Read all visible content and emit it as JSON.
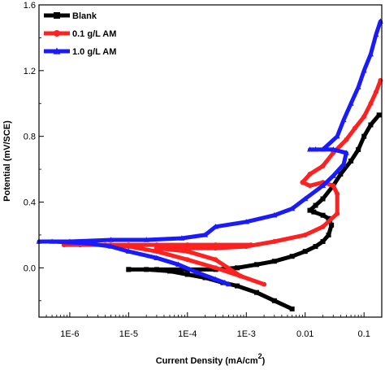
{
  "chart_data": {
    "type": "line",
    "title": "",
    "xlabel": "Current Density (mA/cm",
    "xlabel_superscript": "2",
    "xlabel_suffix": ")",
    "ylabel": "Potential  (mV/SCE)",
    "x_scale": "log",
    "xlim": [
      3e-07,
      0.2
    ],
    "ylim": [
      -0.3,
      1.6
    ],
    "x_ticks": [
      {
        "value": 1e-06,
        "label": "1E-6"
      },
      {
        "value": 1e-05,
        "label": "1E-5"
      },
      {
        "value": 0.0001,
        "label": "1E-4"
      },
      {
        "value": 0.001,
        "label": "1E-3"
      },
      {
        "value": 0.01,
        "label": "0.01"
      },
      {
        "value": 0.1,
        "label": "0.1"
      }
    ],
    "y_ticks": [
      {
        "value": 0.0,
        "label": "0.0"
      },
      {
        "value": 0.4,
        "label": "0.4"
      },
      {
        "value": 0.8,
        "label": "0.8"
      },
      {
        "value": 1.2,
        "label": "1.2"
      },
      {
        "value": 1.6,
        "label": "1.6"
      }
    ],
    "grid": false,
    "legend_position": "top-left",
    "series": [
      {
        "name": "Blank",
        "color": "#000000",
        "marker": "square",
        "points": [
          [
            0.006,
            -0.25
          ],
          [
            0.003,
            -0.2
          ],
          [
            0.0015,
            -0.15
          ],
          [
            0.0007,
            -0.11
          ],
          [
            0.0004,
            -0.09
          ],
          [
            0.0002,
            -0.06
          ],
          [
            0.0001,
            -0.04
          ],
          [
            5e-05,
            -0.02
          ],
          [
            2e-05,
            -0.01
          ],
          [
            1e-05,
            -0.01
          ],
          [
            1e-05,
            -0.01
          ],
          [
            3e-05,
            -0.01
          ],
          [
            0.0001,
            -0.01
          ],
          [
            0.0003,
            -0.01
          ],
          [
            0.0007,
            0.0
          ],
          [
            0.0015,
            0.02
          ],
          [
            0.003,
            0.04
          ],
          [
            0.006,
            0.07
          ],
          [
            0.01,
            0.1
          ],
          [
            0.015,
            0.13
          ],
          [
            0.02,
            0.16
          ],
          [
            0.025,
            0.2
          ],
          [
            0.028,
            0.26
          ],
          [
            0.025,
            0.3
          ],
          [
            0.02,
            0.32
          ],
          [
            0.014,
            0.34
          ],
          [
            0.012,
            0.35
          ],
          [
            0.015,
            0.38
          ],
          [
            0.02,
            0.42
          ],
          [
            0.03,
            0.5
          ],
          [
            0.04,
            0.57
          ],
          [
            0.06,
            0.65
          ],
          [
            0.08,
            0.72
          ],
          [
            0.1,
            0.8
          ],
          [
            0.13,
            0.87
          ],
          [
            0.18,
            0.93
          ]
        ]
      },
      {
        "name": "0.1 g/L AM",
        "color": "#ff2020",
        "marker": "circle",
        "points": [
          [
            0.0012,
            0.14
          ],
          [
            0.0003,
            0.14
          ],
          [
            0.0001,
            0.14
          ],
          [
            3e-05,
            0.14
          ],
          [
            1e-05,
            0.14
          ],
          [
            4e-06,
            0.14
          ],
          [
            1.5e-06,
            0.14
          ],
          [
            8e-07,
            0.14
          ],
          [
            1.5e-06,
            0.14
          ],
          [
            5e-06,
            0.14
          ],
          [
            1e-05,
            0.13
          ],
          [
            3e-05,
            0.1
          ],
          [
            0.0001,
            0.05
          ],
          [
            0.0003,
            0.0
          ],
          [
            0.0008,
            -0.05
          ],
          [
            0.002,
            -0.1
          ],
          [
            0.0008,
            -0.05
          ],
          [
            0.0003,
            0.05
          ],
          [
            0.0001,
            0.1
          ],
          [
            3e-05,
            0.12
          ],
          [
            0.0003,
            0.12
          ],
          [
            0.001,
            0.13
          ],
          [
            0.003,
            0.16
          ],
          [
            0.01,
            0.2
          ],
          [
            0.02,
            0.25
          ],
          [
            0.035,
            0.33
          ],
          [
            0.035,
            0.45
          ],
          [
            0.03,
            0.5
          ],
          [
            0.02,
            0.52
          ],
          [
            0.012,
            0.5
          ],
          [
            0.009,
            0.52
          ],
          [
            0.012,
            0.57
          ],
          [
            0.02,
            0.62
          ],
          [
            0.03,
            0.7
          ],
          [
            0.05,
            0.78
          ],
          [
            0.07,
            0.85
          ],
          [
            0.1,
            0.92
          ],
          [
            0.13,
            1.0
          ],
          [
            0.16,
            1.07
          ],
          [
            0.19,
            1.14
          ]
        ]
      },
      {
        "name": "1.0 g/L AM",
        "color": "#1a1aff",
        "marker": "triangle",
        "points": [
          [
            0.0005,
            -0.1
          ],
          [
            0.0003,
            -0.07
          ],
          [
            0.00015,
            -0.03
          ],
          [
            7e-05,
            0.02
          ],
          [
            3e-05,
            0.06
          ],
          [
            1e-05,
            0.1
          ],
          [
            5e-06,
            0.13
          ],
          [
            2e-06,
            0.15
          ],
          [
            5e-07,
            0.16
          ],
          [
            3e-07,
            0.16
          ],
          [
            1e-06,
            0.16
          ],
          [
            5e-06,
            0.17
          ],
          [
            2e-05,
            0.17
          ],
          [
            8e-05,
            0.18
          ],
          [
            0.0002,
            0.2
          ],
          [
            0.0003,
            0.25
          ],
          [
            0.001,
            0.28
          ],
          [
            0.003,
            0.32
          ],
          [
            0.006,
            0.36
          ],
          [
            0.01,
            0.42
          ],
          [
            0.02,
            0.5
          ],
          [
            0.03,
            0.56
          ],
          [
            0.045,
            0.63
          ],
          [
            0.05,
            0.7
          ],
          [
            0.03,
            0.72
          ],
          [
            0.015,
            0.72
          ],
          [
            0.012,
            0.72
          ],
          [
            0.02,
            0.72
          ],
          [
            0.035,
            0.8
          ],
          [
            0.045,
            0.9
          ],
          [
            0.06,
            1.0
          ],
          [
            0.08,
            1.1
          ],
          [
            0.1,
            1.2
          ],
          [
            0.13,
            1.3
          ],
          [
            0.16,
            1.42
          ],
          [
            0.19,
            1.5
          ]
        ]
      }
    ]
  }
}
